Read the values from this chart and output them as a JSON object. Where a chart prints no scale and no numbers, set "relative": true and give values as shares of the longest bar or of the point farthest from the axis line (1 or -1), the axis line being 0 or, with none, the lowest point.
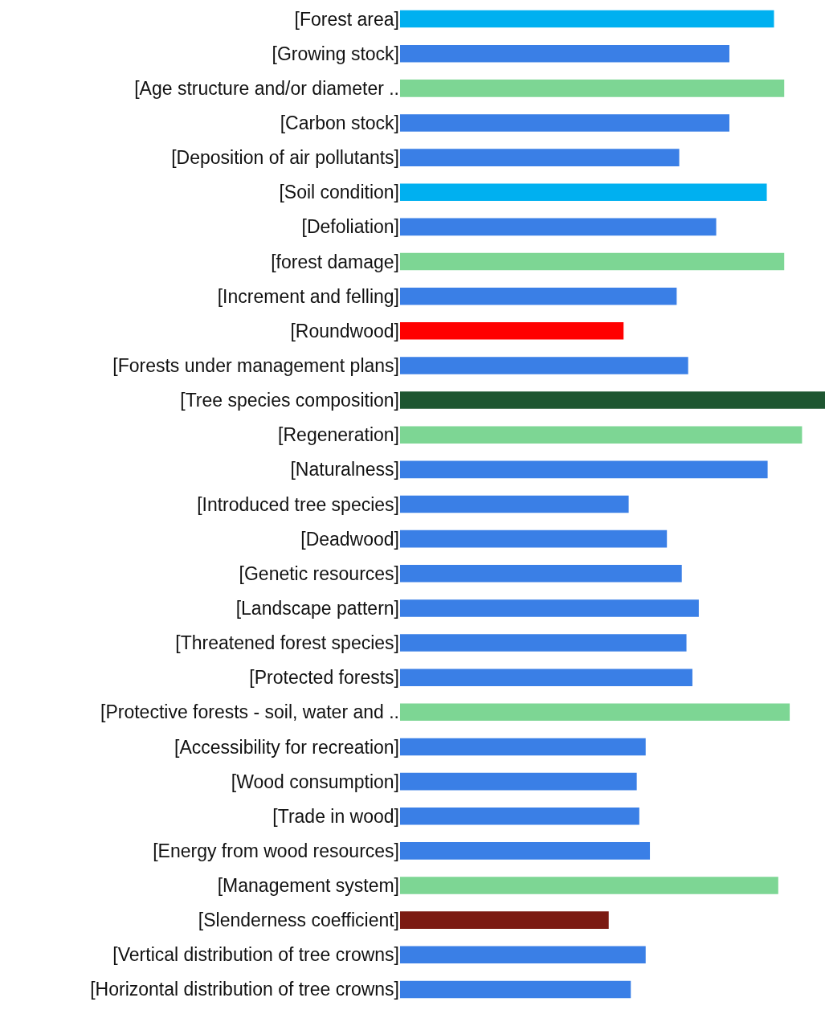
{
  "chart_data": {
    "type": "bar",
    "orientation": "horizontal",
    "relative": true,
    "categories": [
      "[Forest area]",
      "[Growing stock]",
      "[Age structure and/or diameter ..",
      "[Carbon stock]",
      "[Deposition of air pollutants]",
      "[Soil condition]",
      "[Defoliation]",
      "[forest damage]",
      "[Increment and felling]",
      "[Roundwood]",
      "[Forests under management plans]",
      "[Tree species composition]",
      "[Regeneration]",
      "[Naturalness]",
      "[Introduced tree species]",
      "[Deadwood]",
      "[Genetic resources]",
      "[Landscape pattern]",
      "[Threatened forest species]",
      "[Protected forests]",
      "[Protective forests - soil, water and ..",
      "[Accessibility for recreation]",
      "[Wood consumption]",
      "[Trade in wood]",
      "[Energy from wood resources]",
      "[Management system]",
      "[Slenderness coefficient]",
      "[Vertical distribution of tree crowns]",
      "[Horizontal distribution of tree crowns]"
    ],
    "values": [
      0.88,
      0.775,
      0.904,
      0.775,
      0.657,
      0.863,
      0.744,
      0.904,
      0.651,
      0.526,
      0.678,
      1,
      0.946,
      0.865,
      0.538,
      0.628,
      0.663,
      0.703,
      0.674,
      0.688,
      0.917,
      0.578,
      0.557,
      0.563,
      0.588,
      0.89,
      0.491,
      0.578,
      0.543
    ],
    "colors": [
      "#00b0f0",
      "#3a7fe6",
      "#7dd694",
      "#3a7fe6",
      "#3a7fe6",
      "#00b0f0",
      "#3a7fe6",
      "#7dd694",
      "#3a7fe6",
      "#ff0000",
      "#3a7fe6",
      "#1e5631",
      "#7dd694",
      "#3a7fe6",
      "#3a7fe6",
      "#3a7fe6",
      "#3a7fe6",
      "#3a7fe6",
      "#3a7fe6",
      "#3a7fe6",
      "#7dd694",
      "#3a7fe6",
      "#3a7fe6",
      "#3a7fe6",
      "#3a7fe6",
      "#7dd694",
      "#7b1a12",
      "#3a7fe6",
      "#3a7fe6"
    ]
  }
}
